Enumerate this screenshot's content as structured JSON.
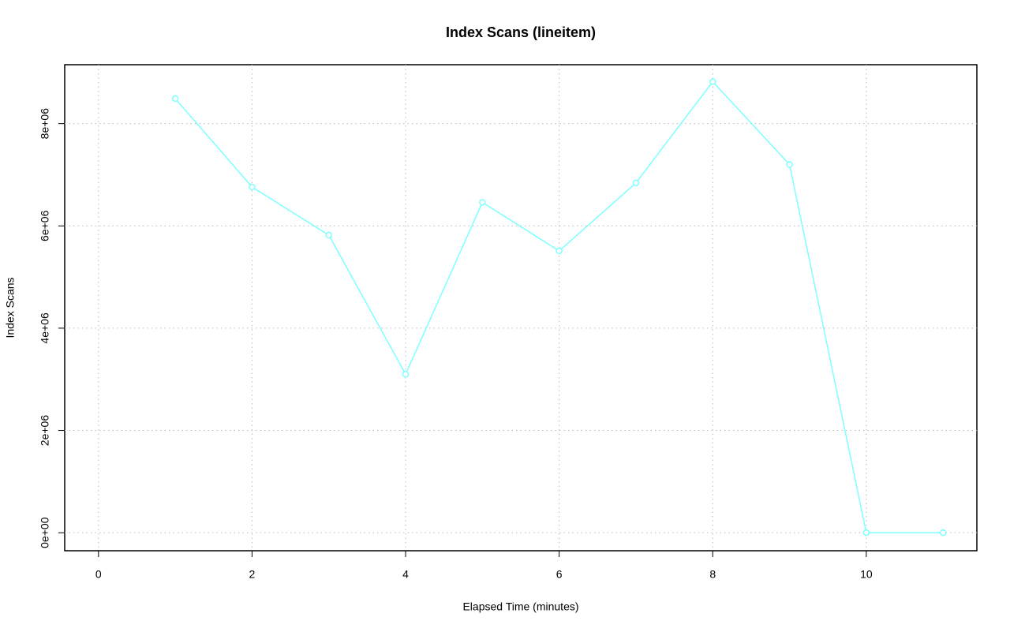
{
  "chart_data": {
    "type": "line",
    "title": "Index Scans (lineitem)",
    "xlabel": "Elapsed Time (minutes)",
    "ylabel": "Index Scans",
    "x": [
      1,
      2,
      3,
      4,
      5,
      6,
      7,
      8,
      9,
      10,
      11
    ],
    "series": [
      {
        "name": "lineitem",
        "color": "#7fffff",
        "values": [
          8490000,
          6760000,
          5820000,
          3100000,
          6460000,
          5510000,
          6840000,
          8820000,
          7200000,
          0,
          0
        ]
      }
    ],
    "xlim": [
      -0.44,
      11.44
    ],
    "xticks": [
      0,
      2,
      4,
      6,
      8,
      10
    ],
    "ylim": [
      -352000,
      9152000
    ],
    "yticks": [
      {
        "value": 0,
        "label": "0e+00"
      },
      {
        "value": 2000000,
        "label": "2e+06"
      },
      {
        "value": 4000000,
        "label": "4e+06"
      },
      {
        "value": 6000000,
        "label": "6e+06"
      },
      {
        "value": 8000000,
        "label": "8e+06"
      }
    ],
    "grid": true
  }
}
